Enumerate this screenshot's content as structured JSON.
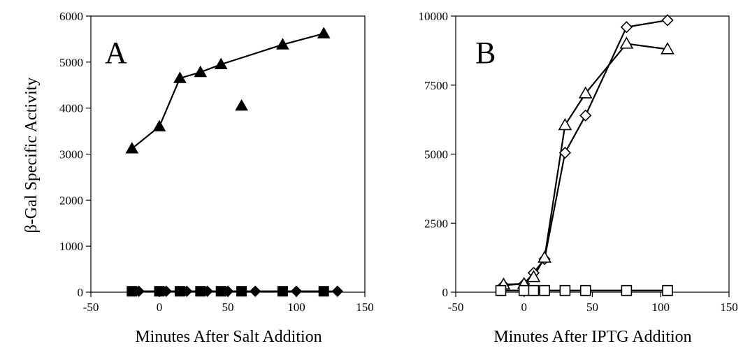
{
  "figure": {
    "ylabel": "β-Gal Specific Activity"
  },
  "chart_data": [
    {
      "type": "scatter",
      "panel_label": "A",
      "xlabel": "Minutes After Salt Addition",
      "ylabel": "β-Gal Specific Activity",
      "xlim": [
        -50,
        150
      ],
      "ylim": [
        0,
        6000
      ],
      "xticks": [
        -50,
        0,
        50,
        100,
        150
      ],
      "yticks": [
        0,
        1000,
        2000,
        3000,
        4000,
        5000,
        6000
      ],
      "grid": false,
      "series": [
        {
          "marker": "filled-triangle",
          "connected": true,
          "x": [
            -20,
            0,
            15,
            30,
            45,
            90,
            120
          ],
          "y": [
            3120,
            3600,
            4650,
            4780,
            4950,
            5380,
            5620
          ]
        },
        {
          "marker": "filled-triangle",
          "connected": false,
          "x": [
            60
          ],
          "y": [
            4050
          ]
        },
        {
          "marker": "filled-square",
          "connected": true,
          "x": [
            -20,
            0,
            15,
            30,
            45,
            60,
            90,
            120
          ],
          "y": [
            20,
            20,
            20,
            20,
            20,
            20,
            20,
            20
          ]
        },
        {
          "marker": "filled-diamond",
          "connected": true,
          "x": [
            -15,
            5,
            20,
            35,
            50,
            70,
            100,
            130
          ],
          "y": [
            20,
            20,
            20,
            20,
            20,
            20,
            20,
            20
          ]
        }
      ]
    },
    {
      "type": "line",
      "panel_label": "B",
      "xlabel": "Minutes After IPTG Addition",
      "xlim": [
        -50,
        150
      ],
      "ylim": [
        0,
        10000
      ],
      "xticks": [
        -50,
        0,
        50,
        100,
        150
      ],
      "yticks": [
        0,
        2500,
        5000,
        7500,
        10000
      ],
      "grid": false,
      "series": [
        {
          "marker": "open-diamond",
          "x": [
            -15,
            0,
            7,
            15,
            30,
            45,
            75,
            105
          ],
          "y": [
            250,
            300,
            700,
            1200,
            5050,
            6400,
            9600,
            9850
          ]
        },
        {
          "marker": "open-triangle",
          "x": [
            -15,
            0,
            7,
            15,
            30,
            45,
            75,
            105
          ],
          "y": [
            280,
            300,
            550,
            1250,
            6050,
            7200,
            9000,
            8800
          ]
        },
        {
          "marker": "open-square",
          "x": [
            -17,
            0,
            7,
            15,
            30,
            45,
            75,
            105
          ],
          "y": [
            60,
            60,
            60,
            60,
            60,
            60,
            60,
            60
          ]
        }
      ]
    }
  ]
}
